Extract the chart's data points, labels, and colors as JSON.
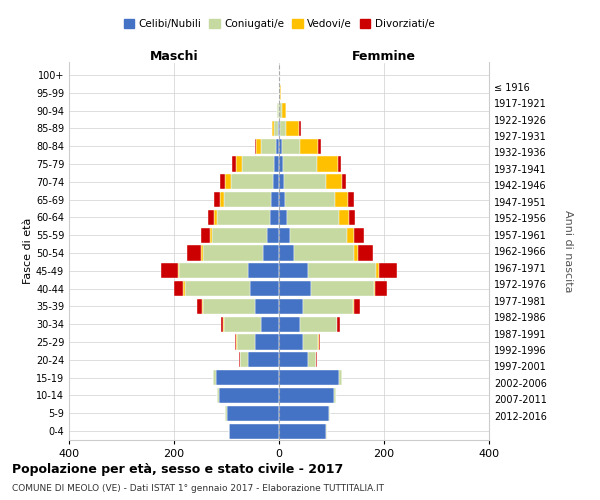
{
  "age_groups": [
    "0-4",
    "5-9",
    "10-14",
    "15-19",
    "20-24",
    "25-29",
    "30-34",
    "35-39",
    "40-44",
    "45-49",
    "50-54",
    "55-59",
    "60-64",
    "65-69",
    "70-74",
    "75-79",
    "80-84",
    "85-89",
    "90-94",
    "95-99",
    "100+"
  ],
  "birth_years": [
    "2012-2016",
    "2007-2011",
    "2002-2006",
    "1997-2001",
    "1992-1996",
    "1987-1991",
    "1982-1986",
    "1977-1981",
    "1972-1976",
    "1967-1971",
    "1962-1966",
    "1957-1961",
    "1952-1956",
    "1947-1951",
    "1942-1946",
    "1937-1941",
    "1932-1936",
    "1927-1931",
    "1922-1926",
    "1917-1921",
    "≤ 1916"
  ],
  "maschi": {
    "celibi": [
      95,
      100,
      115,
      120,
      60,
      45,
      35,
      45,
      55,
      60,
      30,
      22,
      18,
      15,
      12,
      10,
      5,
      2,
      0,
      0,
      0
    ],
    "coniugati": [
      1,
      2,
      3,
      5,
      15,
      35,
      70,
      100,
      125,
      130,
      115,
      105,
      100,
      90,
      80,
      60,
      30,
      8,
      3,
      0,
      0
    ],
    "vedovi": [
      0,
      0,
      0,
      0,
      0,
      1,
      1,
      2,
      2,
      3,
      3,
      4,
      5,
      8,
      10,
      12,
      8,
      3,
      0,
      0,
      0
    ],
    "divorziati": [
      0,
      0,
      0,
      0,
      1,
      2,
      5,
      10,
      18,
      32,
      28,
      18,
      12,
      10,
      10,
      8,
      2,
      0,
      0,
      0,
      0
    ]
  },
  "femmine": {
    "nubili": [
      90,
      95,
      105,
      115,
      55,
      45,
      40,
      45,
      60,
      55,
      28,
      20,
      15,
      12,
      10,
      8,
      5,
      2,
      0,
      0,
      0
    ],
    "coniugate": [
      1,
      2,
      3,
      5,
      15,
      30,
      70,
      95,
      120,
      130,
      115,
      110,
      100,
      95,
      80,
      65,
      35,
      12,
      5,
      2,
      0
    ],
    "vedove": [
      0,
      0,
      0,
      0,
      1,
      1,
      1,
      2,
      3,
      5,
      8,
      12,
      18,
      25,
      30,
      40,
      35,
      25,
      8,
      2,
      0
    ],
    "divorziate": [
      0,
      0,
      0,
      0,
      1,
      2,
      5,
      12,
      22,
      35,
      28,
      20,
      12,
      10,
      8,
      6,
      5,
      2,
      0,
      0,
      0
    ]
  },
  "colors": {
    "celibi": "#4472c4",
    "coniugati": "#c5d9a0",
    "vedovi": "#ffc000",
    "divorziati": "#cc0000"
  },
  "xlim": 400,
  "title": "Popolazione per età, sesso e stato civile - 2017",
  "subtitle": "COMUNE DI MEOLO (VE) - Dati ISTAT 1° gennaio 2017 - Elaborazione TUTTITALIA.IT",
  "ylabel_left": "Fasce di età",
  "ylabel_right": "Anni di nascita",
  "xlabel_left": "Maschi",
  "xlabel_right": "Femmine",
  "legend_labels": [
    "Celibi/Nubili",
    "Coniugati/e",
    "Vedovi/e",
    "Divorziati/e"
  ]
}
